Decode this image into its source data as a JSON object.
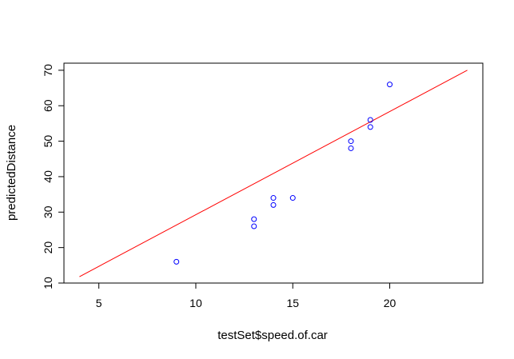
{
  "chart_data": {
    "type": "scatter",
    "title": "",
    "xlabel": "testSet$speed.of.car",
    "ylabel": "predictedDistance",
    "xlim": [
      3.2,
      24.8
    ],
    "ylim": [
      10,
      72
    ],
    "x_ticks": [
      5,
      10,
      15,
      20
    ],
    "y_ticks": [
      10,
      20,
      30,
      40,
      50,
      60,
      70
    ],
    "grid": false,
    "legend": "none",
    "point_color": "#0000ff",
    "line_color": "#ff0000",
    "points": [
      {
        "x": 9,
        "y": 16
      },
      {
        "x": 13,
        "y": 26
      },
      {
        "x": 13,
        "y": 28
      },
      {
        "x": 14,
        "y": 32
      },
      {
        "x": 14,
        "y": 34
      },
      {
        "x": 15,
        "y": 34
      },
      {
        "x": 18,
        "y": 48
      },
      {
        "x": 18,
        "y": 50
      },
      {
        "x": 19,
        "y": 54
      },
      {
        "x": 19,
        "y": 56
      },
      {
        "x": 20,
        "y": 66
      }
    ],
    "fit_line": {
      "x": [
        4,
        24
      ],
      "y": [
        11.8,
        70
      ]
    }
  }
}
